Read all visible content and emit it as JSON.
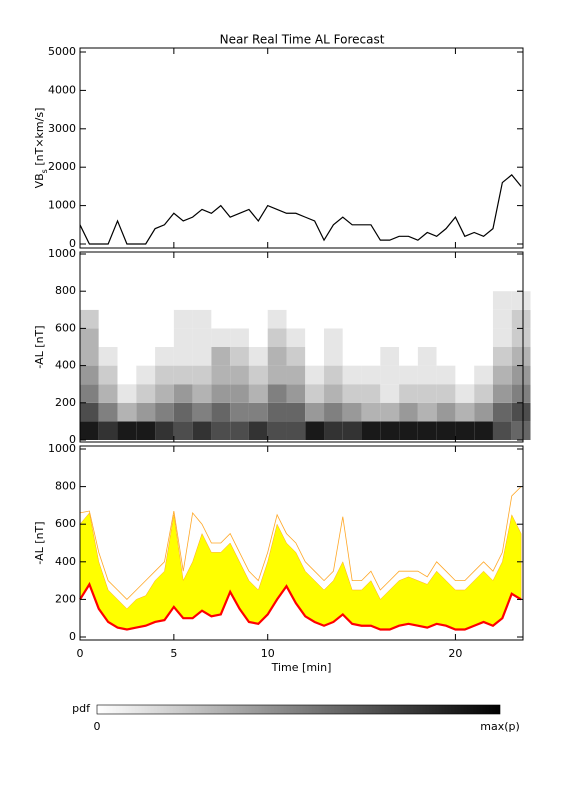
{
  "chart_data": [
    {
      "type": "line",
      "title": "Near Real Time AL Forecast",
      "ylabel": [
        "VB",
        "s",
        " [nT×km/s]"
      ],
      "xlim": [
        0,
        23.6
      ],
      "xticks": [
        0,
        5,
        10,
        20
      ],
      "ylim": [
        0,
        5000
      ],
      "yticks": [
        0,
        1000,
        2000,
        3000,
        4000,
        5000
      ],
      "x": [
        0,
        0.5,
        1,
        1.5,
        2,
        2.5,
        3,
        3.5,
        4,
        4.5,
        5,
        5.5,
        6,
        6.5,
        7,
        7.5,
        8,
        8.5,
        9,
        9.5,
        10,
        10.5,
        11,
        11.5,
        12,
        12.5,
        13,
        13.5,
        14,
        14.5,
        15,
        15.5,
        16,
        16.5,
        17,
        17.5,
        18,
        18.5,
        19,
        19.5,
        20,
        20.5,
        21,
        21.5,
        22,
        22.5,
        23,
        23.5
      ],
      "series": [
        {
          "color": "#000000",
          "values": [
            500,
            0,
            0,
            0,
            600,
            0,
            0,
            0,
            400,
            500,
            800,
            600,
            700,
            900,
            800,
            1000,
            700,
            800,
            900,
            600,
            1000,
            900,
            800,
            800,
            700,
            600,
            100,
            500,
            700,
            500,
            500,
            500,
            100,
            100,
            200,
            200,
            100,
            300,
            200,
            400,
            700,
            200,
            300,
            200,
            400,
            1600,
            1800,
            1500
          ]
        }
      ]
    },
    {
      "type": "heatmap",
      "ylabel": "-AL [nT]",
      "xlim": [
        0,
        23.6
      ],
      "xticks": [
        0,
        5,
        10,
        20
      ],
      "ylim": [
        0,
        1000
      ],
      "yticks": [
        0,
        200,
        400,
        600,
        800,
        1000
      ],
      "x": [
        0,
        1,
        2,
        3,
        4,
        5,
        6,
        7,
        8,
        9,
        10,
        11,
        12,
        13,
        14,
        15,
        16,
        17,
        18,
        19,
        20,
        21,
        22,
        23
      ],
      "y": [
        0,
        100,
        200,
        300,
        400,
        500,
        600,
        700
      ],
      "values": [
        [
          0.9,
          0.7,
          0.5,
          0.4,
          0.3,
          0.3,
          0.2,
          0
        ],
        [
          0.8,
          0.5,
          0.3,
          0.2,
          0.1,
          0,
          0,
          0
        ],
        [
          0.9,
          0.3,
          0.1,
          0,
          0,
          0,
          0,
          0
        ],
        [
          0.9,
          0.4,
          0.2,
          0.1,
          0,
          0,
          0,
          0
        ],
        [
          0.8,
          0.5,
          0.3,
          0.2,
          0.1,
          0,
          0,
          0
        ],
        [
          0.7,
          0.6,
          0.4,
          0.2,
          0.1,
          0.1,
          0.1,
          0
        ],
        [
          0.8,
          0.5,
          0.3,
          0.2,
          0.1,
          0.1,
          0.1,
          0
        ],
        [
          0.7,
          0.6,
          0.4,
          0.3,
          0.3,
          0.1,
          0,
          0
        ],
        [
          0.7,
          0.5,
          0.4,
          0.3,
          0.2,
          0.1,
          0,
          0
        ],
        [
          0.8,
          0.5,
          0.3,
          0.2,
          0.1,
          0,
          0,
          0
        ],
        [
          0.7,
          0.6,
          0.5,
          0.3,
          0.3,
          0.2,
          0.1,
          0
        ],
        [
          0.7,
          0.6,
          0.4,
          0.3,
          0.2,
          0.1,
          0,
          0
        ],
        [
          0.9,
          0.4,
          0.2,
          0.1,
          0,
          0,
          0,
          0
        ],
        [
          0.8,
          0.5,
          0.3,
          0.2,
          0.1,
          0.1,
          0,
          0
        ],
        [
          0.8,
          0.4,
          0.2,
          0.1,
          0,
          0,
          0,
          0
        ],
        [
          0.9,
          0.3,
          0.2,
          0.1,
          0,
          0,
          0,
          0
        ],
        [
          0.9,
          0.3,
          0.1,
          0.1,
          0.1,
          0,
          0,
          0
        ],
        [
          0.9,
          0.4,
          0.2,
          0.1,
          0,
          0,
          0,
          0
        ],
        [
          0.9,
          0.3,
          0.2,
          0.1,
          0.1,
          0,
          0,
          0
        ],
        [
          0.9,
          0.4,
          0.2,
          0.1,
          0,
          0,
          0,
          0
        ],
        [
          0.9,
          0.3,
          0.1,
          0,
          0,
          0,
          0,
          0
        ],
        [
          0.9,
          0.4,
          0.2,
          0.1,
          0,
          0,
          0,
          0
        ],
        [
          0.7,
          0.6,
          0.4,
          0.3,
          0.2,
          0.1,
          0.1,
          0.1
        ],
        [
          0.6,
          0.7,
          0.5,
          0.4,
          0.3,
          0.2,
          0.2,
          0.1
        ]
      ]
    },
    {
      "type": "band",
      "ylabel": "-AL [nT]",
      "xlabel": "Time [min]",
      "xlim": [
        0,
        23.6
      ],
      "xticks": [
        0,
        5,
        10,
        20
      ],
      "ylim": [
        0,
        1000
      ],
      "yticks": [
        0,
        200,
        400,
        600,
        800,
        1000
      ],
      "x": [
        0,
        0.5,
        1,
        1.5,
        2,
        2.5,
        3,
        3.5,
        4,
        4.5,
        5,
        5.5,
        6,
        6.5,
        7,
        7.5,
        8,
        8.5,
        9,
        9.5,
        10,
        10.5,
        11,
        11.5,
        12,
        12.5,
        13,
        13.5,
        14,
        14.5,
        15,
        15.5,
        16,
        16.5,
        17,
        17.5,
        18,
        18.5,
        19,
        19.5,
        20,
        20.5,
        21,
        21.5,
        22,
        22.5,
        23,
        23.5
      ],
      "series": [
        {
          "color": "#ffa726",
          "values": [
            660,
            670,
            450,
            300,
            250,
            200,
            250,
            300,
            350,
            400,
            670,
            350,
            660,
            600,
            500,
            500,
            550,
            450,
            350,
            300,
            450,
            650,
            550,
            500,
            400,
            350,
            300,
            350,
            640,
            300,
            300,
            350,
            250,
            300,
            350,
            350,
            350,
            320,
            400,
            350,
            300,
            300,
            350,
            400,
            350,
            450,
            750,
            800
          ]
        },
        {
          "color": "#ffff00",
          "values": [
            600,
            660,
            400,
            250,
            200,
            150,
            200,
            220,
            300,
            350,
            650,
            300,
            400,
            550,
            450,
            450,
            500,
            400,
            300,
            250,
            400,
            600,
            500,
            450,
            350,
            300,
            250,
            300,
            400,
            250,
            250,
            300,
            200,
            250,
            300,
            320,
            300,
            280,
            350,
            300,
            250,
            250,
            300,
            350,
            300,
            400,
            650,
            550
          ]
        },
        {
          "color": "#ff0000",
          "values": [
            200,
            280,
            150,
            80,
            50,
            40,
            50,
            60,
            80,
            90,
            160,
            100,
            100,
            140,
            110,
            120,
            240,
            150,
            80,
            70,
            120,
            200,
            270,
            180,
            110,
            80,
            60,
            80,
            120,
            70,
            60,
            60,
            40,
            40,
            60,
            70,
            60,
            50,
            70,
            60,
            40,
            40,
            60,
            80,
            60,
            100,
            230,
            200
          ]
        }
      ]
    },
    {
      "type": "colorbar",
      "label": "pdf",
      "min_label": "0",
      "max_label": "max(p)"
    }
  ]
}
